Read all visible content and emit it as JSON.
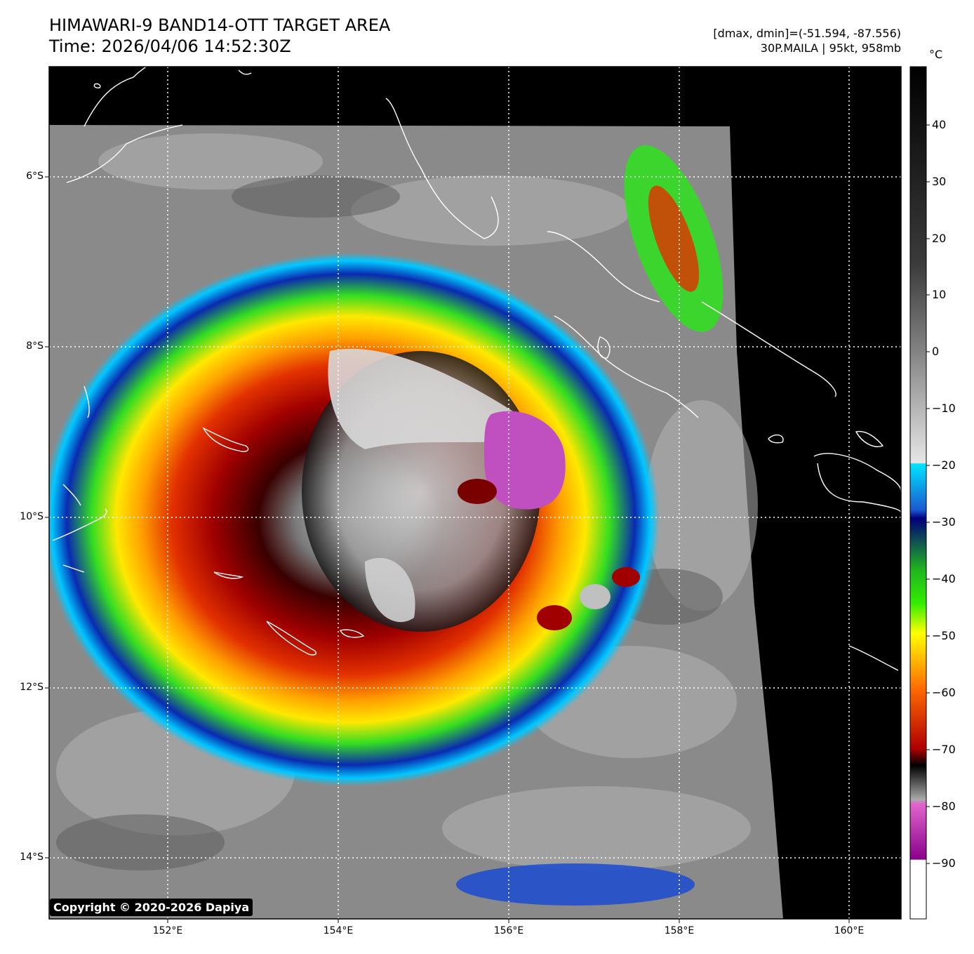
{
  "title_line1": "HIMAWARI-9 BAND14-OTT TARGET AREA",
  "title_line2": "Time: 2026/04/06 14:52:30Z",
  "range_text": "[dmax, dmin]=(-51.594, -87.556)",
  "storm_text": "30P.MAILA | 95kt, 958mb",
  "colorbar_unit": "°C",
  "colorbar_ticks": [
    "40",
    "30",
    "20",
    "10",
    "0",
    "−10",
    "−20",
    "−30",
    "−40",
    "−50",
    "−60",
    "−70",
    "−80",
    "−90"
  ],
  "lat_labels": [
    "6°S",
    "8°S",
    "10°S",
    "12°S",
    "14°S"
  ],
  "lon_labels": [
    "152°E",
    "154°E",
    "156°E",
    "158°E",
    "160°E"
  ],
  "copyright": "Copyright © 2020-2026 Dapiya",
  "colors": {
    "cold_top": "#c050c0",
    "eye_wall": "#a00000",
    "outer_band": "#33dd22",
    "cyan_edge": "#00c8ff",
    "gridline": "#ffffff",
    "space": "#000000"
  },
  "legend_labels": {
    "icon": "colorbar"
  }
}
